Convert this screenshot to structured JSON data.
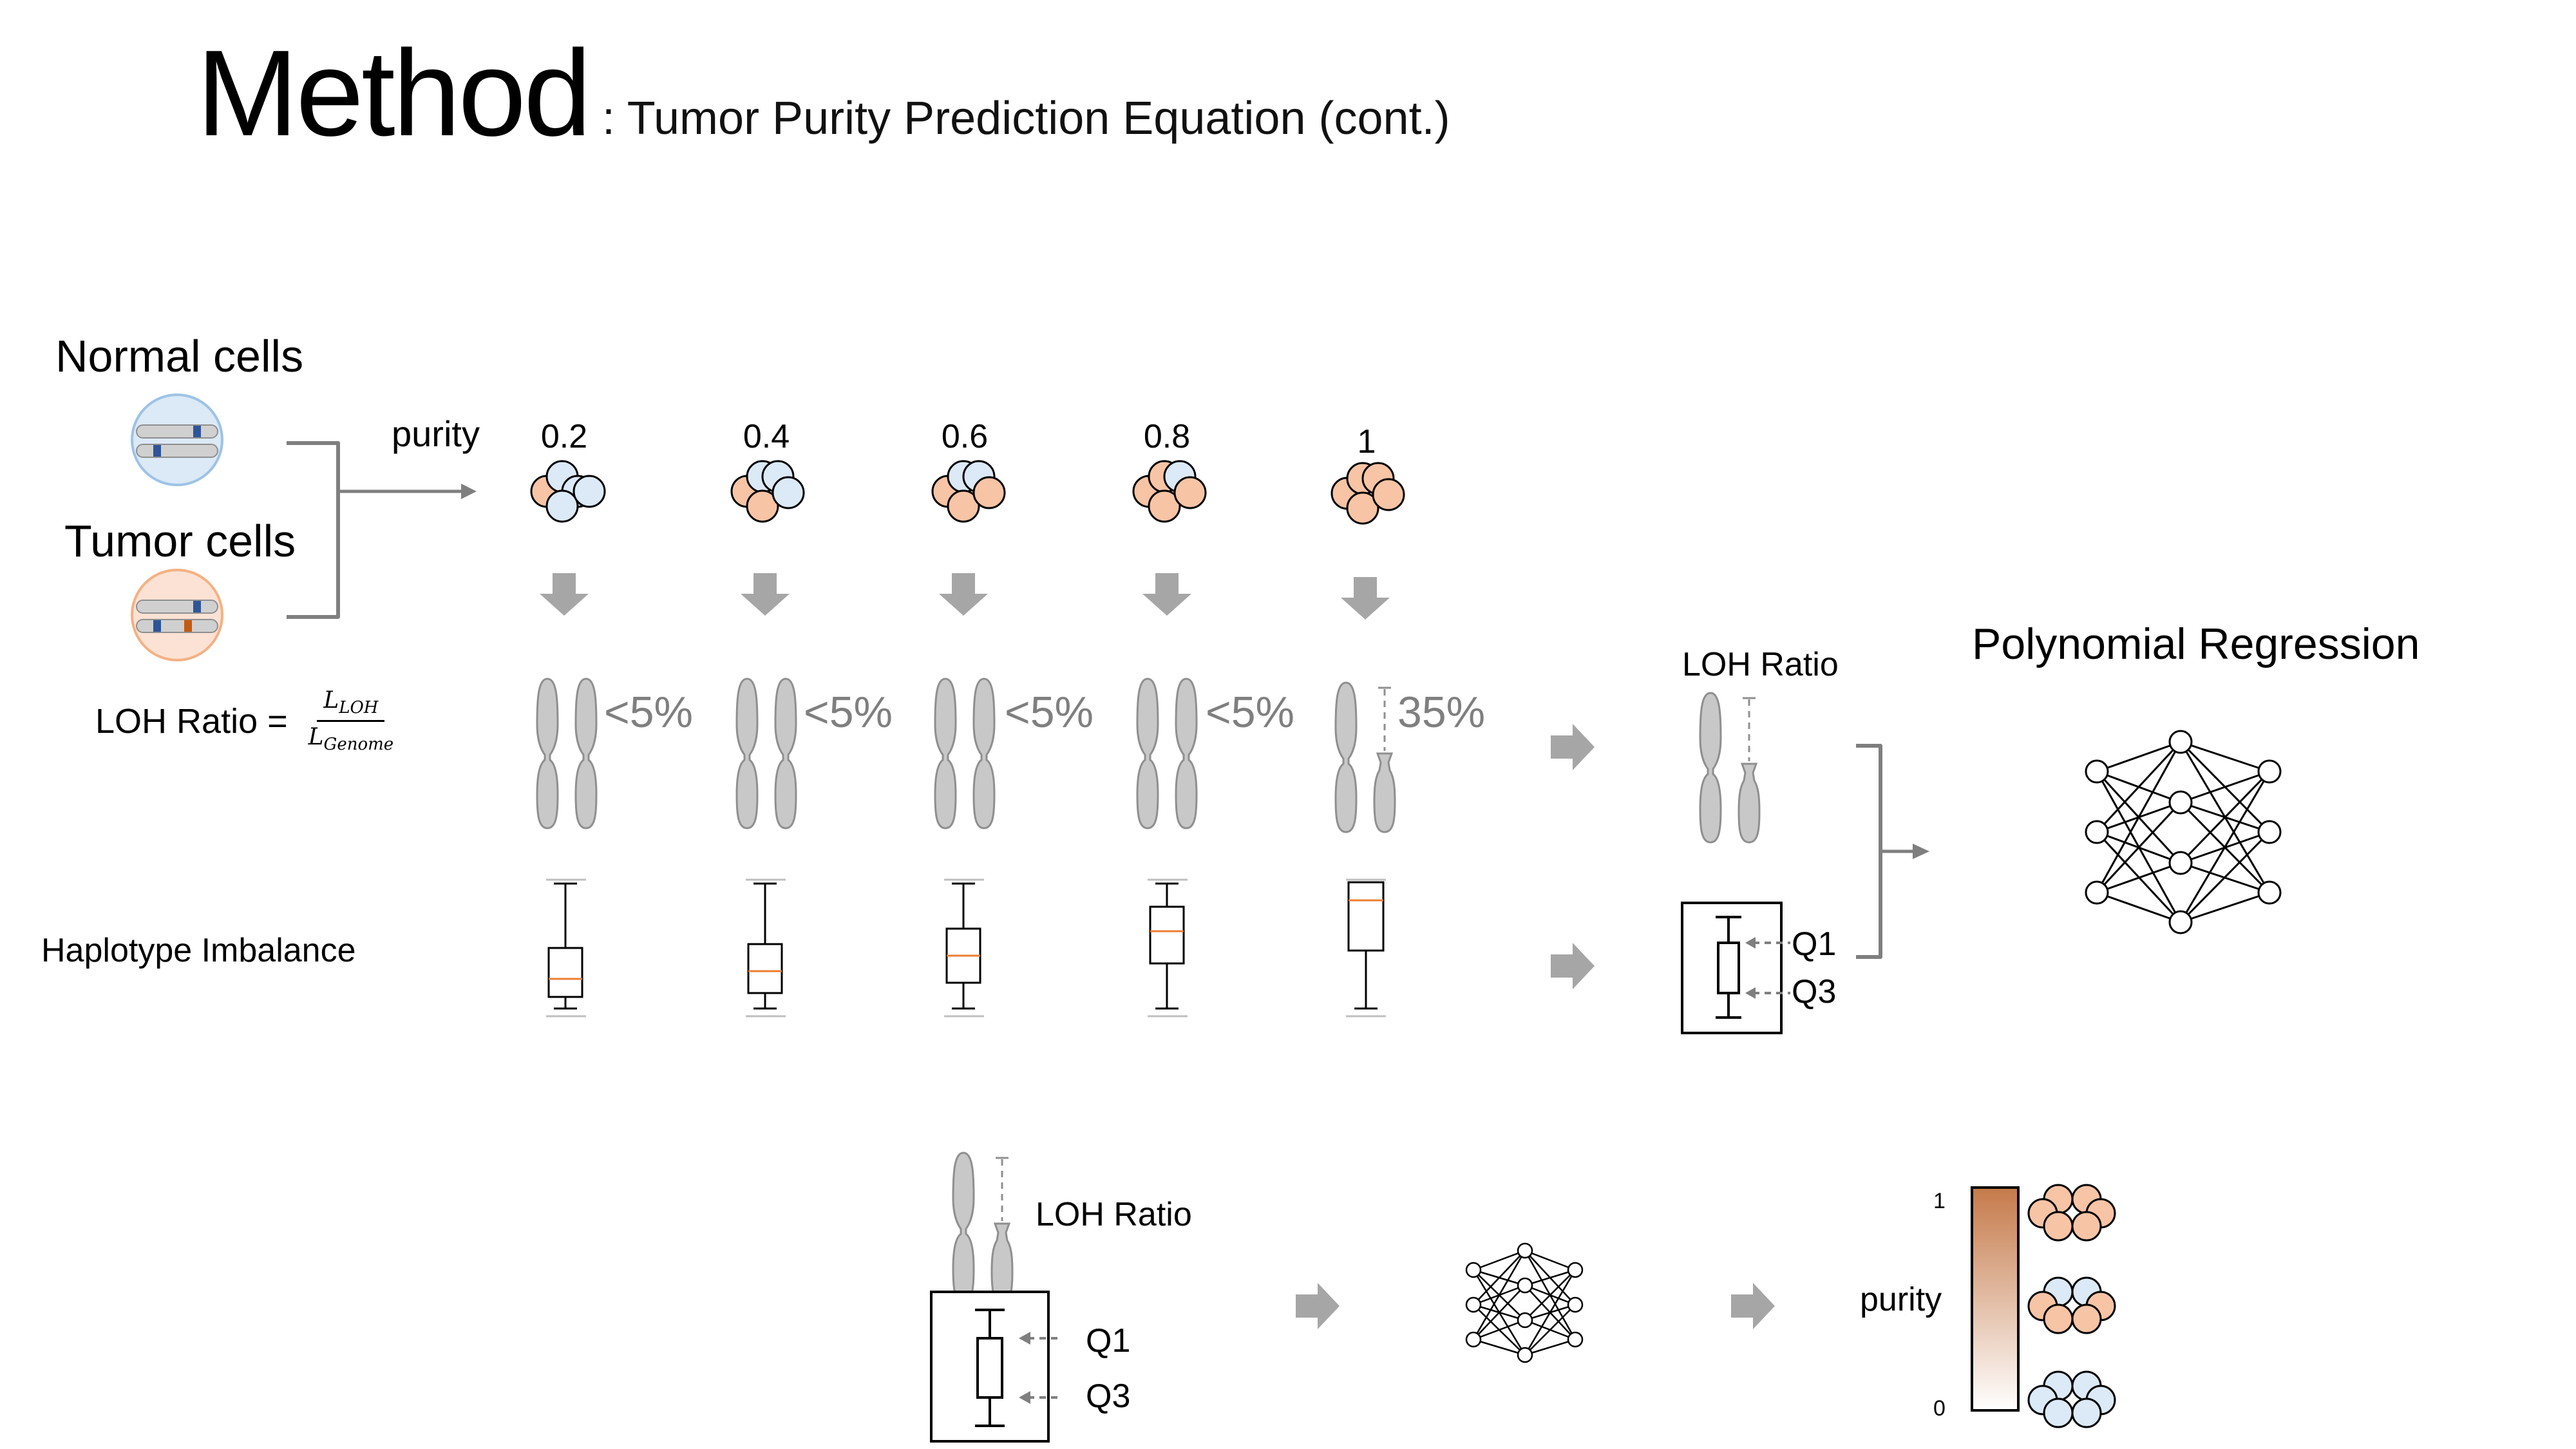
{
  "slide": {
    "title": "Method",
    "subtitle": ": Tumor Purity Prediction Equation (cont.)"
  },
  "cells": {
    "normal_label": "Normal cells",
    "tumor_label": "Tumor cells",
    "purity_label": "purity"
  },
  "samples": {
    "purities": [
      "0.2",
      "0.4",
      "0.6",
      "0.8",
      "1"
    ],
    "loh_values": [
      "<5%",
      "<5%",
      "<5%",
      "<5%",
      "35%"
    ]
  },
  "formula": {
    "lhs": "LOH Ratio =",
    "numerator": "L",
    "numerator_sub": "LOH",
    "denominator": "L",
    "denominator_sub": "Genome"
  },
  "haplotype_label": "Haplotype Imbalance",
  "features": {
    "loh_label": "LOH Ratio",
    "q1": "Q1",
    "q3": "Q3"
  },
  "model": {
    "title": "Polynomial Regression"
  },
  "bottom": {
    "loh_label": "LOH Ratio",
    "q1": "Q1",
    "q3": "Q3",
    "purity_label": "purity",
    "scale_max": "1",
    "scale_min": "0"
  },
  "colors": {
    "normal_cell": "#dce9f6",
    "tumor_cell": "#f7c4a5",
    "arrow_gray": "#a6a6a6",
    "chromosome": "#c8c8c8",
    "gradient_top": "#c57a4a",
    "median_line": "#ed7d31"
  }
}
